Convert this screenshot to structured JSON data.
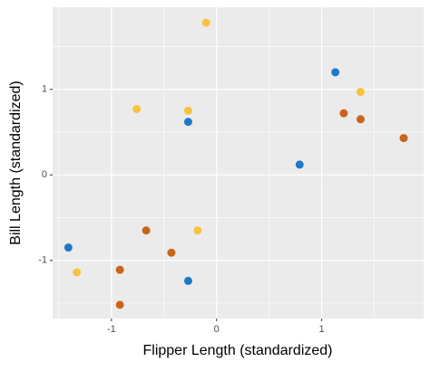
{
  "chart_data": {
    "type": "scatter",
    "x_label": "Flipper Length (standardized)",
    "y_label": "Bill Length (standardized)",
    "xlim": [
      -1.56,
      1.97
    ],
    "ylim": [
      -1.68,
      1.96
    ],
    "xticks": [
      -1,
      0,
      1
    ],
    "yticks": [
      -1,
      0,
      1
    ],
    "xminor": [
      -1.5,
      -0.5,
      0.5,
      1.5
    ],
    "yminor": [
      -1.5,
      -0.5,
      0.5,
      1.5
    ],
    "grid": true,
    "panel_color": "#ebebeb",
    "series": [
      {
        "color": "#1f78c8",
        "x": [
          1.13,
          -0.27,
          0.79,
          -1.41,
          -0.27
        ],
        "values": [
          1.2,
          0.62,
          0.12,
          -0.85,
          -1.24
        ]
      },
      {
        "color": "#f7c240",
        "x": [
          -0.1,
          1.37,
          -0.76,
          -0.27,
          -0.18,
          -1.33
        ],
        "values": [
          1.78,
          0.97,
          0.77,
          0.75,
          -0.65,
          -1.14
        ]
      },
      {
        "color": "#c9651b",
        "x": [
          1.21,
          1.37,
          1.78,
          -0.67,
          -0.43,
          -0.92,
          -0.92
        ],
        "values": [
          0.72,
          0.65,
          0.43,
          -0.65,
          -0.91,
          -1.11,
          -1.52
        ]
      }
    ]
  }
}
